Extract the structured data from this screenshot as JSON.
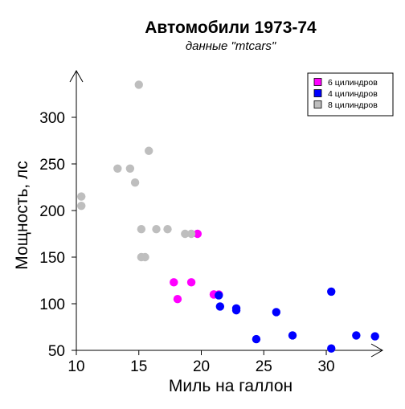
{
  "chart_data": {
    "type": "scatter",
    "title": "Автомобили 1973-74",
    "subtitle": "данные \"mtcars\"",
    "xlabel": "Миль на галлон",
    "ylabel": "Мощность, лс",
    "xlim": [
      10,
      34.5
    ],
    "ylim": [
      50,
      350
    ],
    "xticks": [
      10,
      15,
      20,
      25,
      30
    ],
    "yticks": [
      50,
      100,
      150,
      200,
      250,
      300
    ],
    "grid": false,
    "legend_position": "top-right",
    "series": [
      {
        "name": "6 цилиндров",
        "color": "#ff00ff",
        "points": [
          [
            21.0,
            110
          ],
          [
            21.0,
            110
          ],
          [
            21.4,
            110
          ],
          [
            18.1,
            105
          ],
          [
            19.2,
            123
          ],
          [
            17.8,
            123
          ],
          [
            19.7,
            175
          ]
        ]
      },
      {
        "name": "4 цилиндров",
        "color": "#0000ff",
        "points": [
          [
            22.8,
            93
          ],
          [
            24.4,
            62
          ],
          [
            22.8,
            95
          ],
          [
            32.4,
            66
          ],
          [
            30.4,
            52
          ],
          [
            33.9,
            65
          ],
          [
            21.5,
            97
          ],
          [
            27.3,
            66
          ],
          [
            26.0,
            91
          ],
          [
            30.4,
            113
          ],
          [
            21.4,
            109
          ]
        ]
      },
      {
        "name": "8 цилиндров",
        "color": "#bebebe",
        "points": [
          [
            18.7,
            175
          ],
          [
            14.3,
            245
          ],
          [
            16.4,
            180
          ],
          [
            17.3,
            180
          ],
          [
            15.2,
            180
          ],
          [
            10.4,
            205
          ],
          [
            10.4,
            215
          ],
          [
            14.7,
            230
          ],
          [
            15.5,
            150
          ],
          [
            15.2,
            150
          ],
          [
            13.3,
            245
          ],
          [
            19.2,
            175
          ],
          [
            15.8,
            264
          ],
          [
            15.0,
            335
          ]
        ]
      }
    ]
  }
}
